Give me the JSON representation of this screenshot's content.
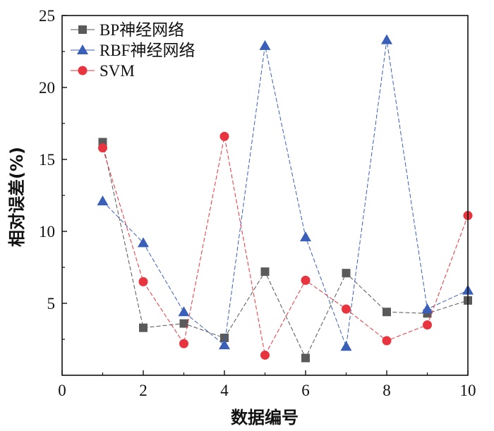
{
  "chart_data": {
    "type": "line",
    "title": "",
    "xlabel": "数据编号",
    "ylabel": "相对误差(%)",
    "xlim": [
      0,
      10
    ],
    "ylim": [
      0,
      25
    ],
    "xticks": [
      "0",
      "2",
      "4",
      "6",
      "8",
      "10"
    ],
    "yticks": [
      "5",
      "10",
      "15",
      "20",
      "25"
    ],
    "x": [
      1,
      2,
      3,
      4,
      5,
      6,
      7,
      8,
      9,
      10
    ],
    "legend_position": "top-left",
    "grid": false,
    "series": [
      {
        "name": "BP神经网络",
        "marker": "square",
        "color": "#5a5a5a",
        "line_color": "#555555",
        "values": [
          16.2,
          3.3,
          3.6,
          2.6,
          7.2,
          1.2,
          7.1,
          4.4,
          4.3,
          5.2
        ]
      },
      {
        "name": "RBF神经网络",
        "marker": "triangle",
        "color": "#3a5fb8",
        "line_color": "#3a5fb8",
        "values": [
          12.1,
          9.2,
          4.4,
          2.1,
          22.9,
          9.6,
          2.0,
          23.3,
          4.6,
          5.9
        ]
      },
      {
        "name": "SVM",
        "marker": "circle",
        "color": "#e8343f",
        "line_color": "#e8343f",
        "values": [
          15.8,
          6.5,
          2.2,
          16.6,
          1.4,
          6.6,
          4.6,
          2.4,
          3.5,
          11.1
        ]
      }
    ]
  }
}
